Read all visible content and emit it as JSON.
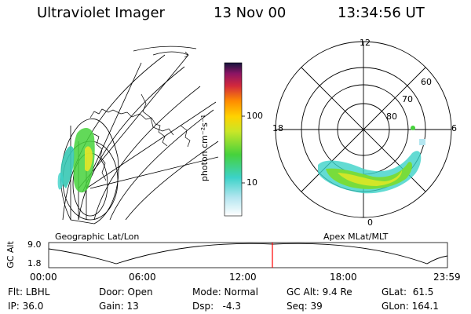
{
  "header": {
    "instrument": "Ultraviolet Imager",
    "date": "13 Nov 00",
    "time": "13:34:56 UT"
  },
  "left_panel": {
    "caption": "Geographic Lat/Lon"
  },
  "right_panel": {
    "caption": "Apex MLat/MLT",
    "mlt_labels": {
      "top": "12",
      "left": "18",
      "right": "6",
      "bottom": "0"
    },
    "lat_labels": [
      "60",
      "70",
      "80"
    ]
  },
  "colorbar": {
    "unit_label": "photon cm⁻²s⁻¹",
    "tick_100": "100",
    "tick_10": "10"
  },
  "altitude_plot": {
    "ylabel": "GC Alt",
    "tick_top": "9.0",
    "tick_bottom": "1.8",
    "time_ticks": [
      "00:00",
      "06:00",
      "12:00",
      "18:00",
      "23:59"
    ],
    "marker_time": "13:34:56"
  },
  "status": {
    "flt": "Flt: LBHL",
    "ip": "IP: 36.0",
    "door": "Door: Open",
    "gain": "Gain: 13",
    "mode": "Mode: Normal",
    "dsp": "Dsp:   -4.3",
    "gcalt": "GC Alt: 9.4 Re",
    "seq": "Seq: 39",
    "glat": "GLat:  61.5",
    "glon": "GLon: 164.1"
  }
}
